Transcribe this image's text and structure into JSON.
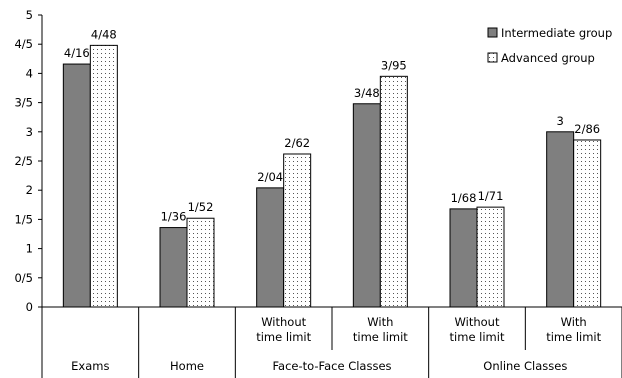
{
  "chart_data": {
    "type": "bar",
    "ylim": [
      0,
      5
    ],
    "y_ticks": [
      {
        "value": 0,
        "label": "0"
      },
      {
        "value": 0.5,
        "label": "0/5"
      },
      {
        "value": 1,
        "label": "1"
      },
      {
        "value": 1.5,
        "label": "1/5"
      },
      {
        "value": 2,
        "label": "2"
      },
      {
        "value": 2.5,
        "label": "2/5"
      },
      {
        "value": 3,
        "label": "3"
      },
      {
        "value": 3.5,
        "label": "3/5"
      },
      {
        "value": 4,
        "label": "4"
      },
      {
        "value": 4.5,
        "label": "4/5"
      },
      {
        "value": 5,
        "label": "5"
      }
    ],
    "grid": false,
    "legend_position": "top-right",
    "categories": [
      {
        "sub": "",
        "group": "Exams"
      },
      {
        "sub": "",
        "group": "Home"
      },
      {
        "sub": "Without time limit",
        "group": "Face-to-Face Classes"
      },
      {
        "sub": "With time limit",
        "group": "Face-to-Face Classes"
      },
      {
        "sub": "Without time limit",
        "group": "Online Classes"
      },
      {
        "sub": "With time limit",
        "group": "Online Classes"
      }
    ],
    "group_labels": [
      {
        "label": "Exams",
        "span": [
          0,
          0
        ]
      },
      {
        "label": "Home",
        "span": [
          1,
          1
        ]
      },
      {
        "label": "Face-to-Face Classes",
        "span": [
          2,
          3
        ]
      },
      {
        "label": "Online Classes",
        "span": [
          4,
          5
        ]
      }
    ],
    "sub_labels": [
      {
        "line1": "",
        "line2": ""
      },
      {
        "line1": "",
        "line2": ""
      },
      {
        "line1": "Without",
        "line2": "time limit"
      },
      {
        "line1": "With",
        "line2": "time limit"
      },
      {
        "line1": "Without",
        "line2": "time limit"
      },
      {
        "line1": "With",
        "line2": "time limit"
      }
    ],
    "series": [
      {
        "name": "Intermediate group",
        "fill": "#7f7f7f",
        "pattern": "solid",
        "values": [
          4.16,
          1.36,
          2.04,
          3.48,
          1.68,
          3.0
        ],
        "labels": [
          "4/16",
          "1/36",
          "2/04",
          "3/48",
          "1/68",
          "3"
        ]
      },
      {
        "name": "Advanced group",
        "fill": "#ffffff",
        "pattern": "dots",
        "values": [
          4.48,
          1.52,
          2.62,
          3.95,
          1.71,
          2.86
        ],
        "labels": [
          "4/48",
          "1/52",
          "2/62",
          "3/95",
          "1/71",
          "2/86"
        ]
      }
    ]
  }
}
